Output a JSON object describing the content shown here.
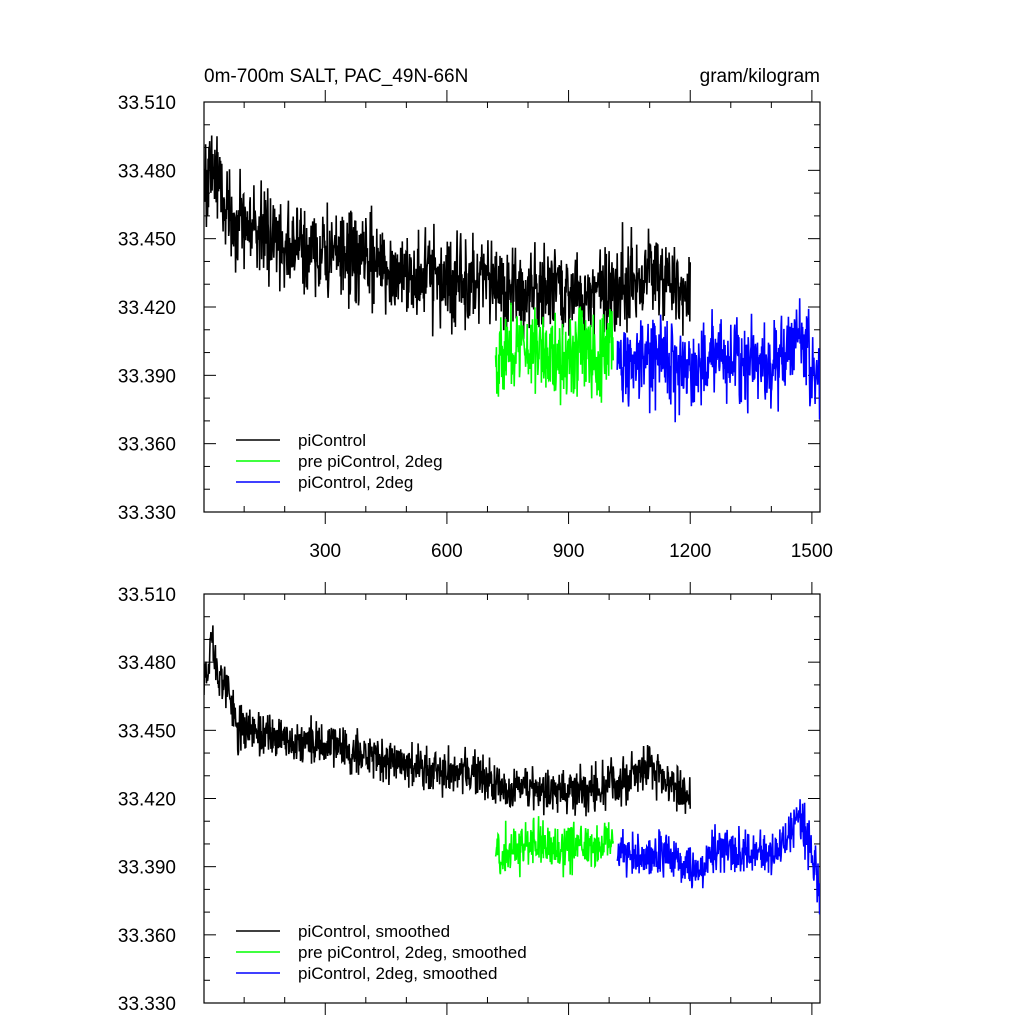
{
  "figure": {
    "title_left": "0m-700m SALT, PAC_49N-66N",
    "title_right": "gram/kilogram"
  },
  "chart_data": [
    {
      "type": "line",
      "panel": "top",
      "title": "0m-700m SALT, PAC_49N-66N",
      "units": "gram/kilogram",
      "xlim": [
        1,
        1520
      ],
      "ylim": [
        33.33,
        33.51
      ],
      "xticks": [
        300,
        600,
        900,
        1200,
        1500
      ],
      "xtick_labels": [
        "300",
        "600",
        "900",
        "1200",
        "1500"
      ],
      "yticks": [
        33.33,
        33.36,
        33.39,
        33.42,
        33.45,
        33.48,
        33.51
      ],
      "ytick_labels": [
        "33.330",
        "33.360",
        "33.390",
        "33.420",
        "33.450",
        "33.480",
        "33.510"
      ],
      "legend_position": "bottom-left",
      "series": [
        {
          "name": "piControl",
          "color": "#000000",
          "x": [
            1,
            25,
            60,
            100,
            150,
            200,
            250,
            300,
            350,
            400,
            450,
            500,
            550,
            600,
            650,
            700,
            750,
            800,
            850,
            900,
            950,
            1000,
            1050,
            1100,
            1150,
            1200
          ],
          "y": [
            33.474,
            33.482,
            33.462,
            33.456,
            33.453,
            33.447,
            33.445,
            33.443,
            33.442,
            33.44,
            33.437,
            33.435,
            33.433,
            33.432,
            33.43,
            33.429,
            33.428,
            33.427,
            33.428,
            33.426,
            33.427,
            33.429,
            33.432,
            33.438,
            33.434,
            33.425
          ],
          "noise": 0.014
        },
        {
          "name": "pre piControl, 2deg",
          "color": "#00ff00",
          "x": [
            720,
            770,
            820,
            870,
            920,
            970,
            1010
          ],
          "y": [
            33.398,
            33.402,
            33.403,
            33.397,
            33.401,
            33.398,
            33.409
          ],
          "noise": 0.013
        },
        {
          "name": "piControl, 2deg",
          "color": "#0000ff",
          "x": [
            1020,
            1070,
            1120,
            1170,
            1220,
            1270,
            1320,
            1370,
            1420,
            1470,
            1520
          ],
          "y": [
            33.397,
            33.394,
            33.397,
            33.395,
            33.392,
            33.4,
            33.396,
            33.398,
            33.395,
            33.41,
            33.384
          ],
          "noise": 0.013
        }
      ]
    },
    {
      "type": "line",
      "panel": "bottom",
      "title": "",
      "xlim": [
        1,
        1520
      ],
      "ylim": [
        33.33,
        33.51
      ],
      "xticks": [
        300,
        600,
        900,
        1200,
        1500
      ],
      "xtick_labels": [],
      "yticks": [
        33.33,
        33.36,
        33.39,
        33.42,
        33.45,
        33.48,
        33.51
      ],
      "ytick_labels": [
        "33.330",
        "33.360",
        "33.390",
        "33.420",
        "33.450",
        "33.480",
        "33.510"
      ],
      "legend_position": "bottom-left",
      "series": [
        {
          "name": "piControl, smoothed",
          "color": "#000000",
          "x": [
            1,
            10,
            20,
            30,
            45,
            60,
            80,
            100,
            150,
            200,
            250,
            300,
            350,
            400,
            450,
            500,
            550,
            600,
            650,
            700,
            750,
            800,
            850,
            900,
            950,
            1000,
            1050,
            1100,
            1150,
            1200
          ],
          "y": [
            33.474,
            33.478,
            33.492,
            33.48,
            33.472,
            33.468,
            33.452,
            33.45,
            33.447,
            33.446,
            33.444,
            33.443,
            33.441,
            33.439,
            33.437,
            33.435,
            33.433,
            33.432,
            33.43,
            33.428,
            33.423,
            33.425,
            33.424,
            33.422,
            33.424,
            33.426,
            33.428,
            33.436,
            33.426,
            33.42
          ],
          "noise": 0.007
        },
        {
          "name": "pre piControl, 2deg, smoothed",
          "color": "#00ff00",
          "x": [
            720,
            770,
            820,
            870,
            920,
            970,
            1010
          ],
          "y": [
            33.396,
            33.398,
            33.401,
            33.395,
            33.401,
            33.396,
            33.406
          ],
          "noise": 0.007
        },
        {
          "name": "piControl, 2deg, smoothed",
          "color": "#0000ff",
          "x": [
            1020,
            1070,
            1120,
            1170,
            1220,
            1270,
            1320,
            1370,
            1420,
            1470,
            1520
          ],
          "y": [
            33.397,
            33.393,
            33.395,
            33.394,
            33.385,
            33.401,
            33.396,
            33.396,
            33.396,
            33.412,
            33.38
          ],
          "noise": 0.007
        }
      ]
    }
  ]
}
